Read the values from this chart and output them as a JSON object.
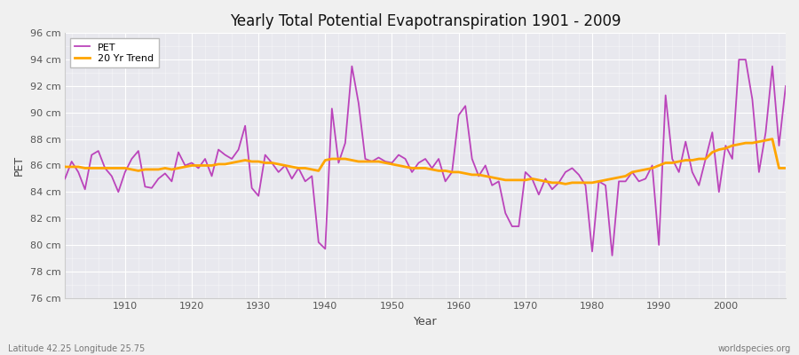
{
  "title": "Yearly Total Potential Evapotranspiration 1901 - 2009",
  "xlabel": "Year",
  "ylabel": "PET",
  "subtitle_left": "Latitude 42.25 Longitude 25.75",
  "subtitle_right": "worldspecies.org",
  "pet_color": "#bb44bb",
  "trend_color": "#ffa500",
  "fig_bg_color": "#f0f0f0",
  "plot_bg_color": "#e8e8ee",
  "ylim": [
    76,
    96
  ],
  "ytick_labels": [
    "76 cm",
    "78 cm",
    "80 cm",
    "82 cm",
    "84 cm",
    "86 cm",
    "88 cm",
    "90 cm",
    "92 cm",
    "94 cm",
    "96 cm"
  ],
  "ytick_values": [
    76,
    78,
    80,
    82,
    84,
    86,
    88,
    90,
    92,
    94,
    96
  ],
  "years": [
    1901,
    1902,
    1903,
    1904,
    1905,
    1906,
    1907,
    1908,
    1909,
    1910,
    1911,
    1912,
    1913,
    1914,
    1915,
    1916,
    1917,
    1918,
    1919,
    1920,
    1921,
    1922,
    1923,
    1924,
    1925,
    1926,
    1927,
    1928,
    1929,
    1930,
    1931,
    1932,
    1933,
    1934,
    1935,
    1936,
    1937,
    1938,
    1939,
    1940,
    1941,
    1942,
    1943,
    1944,
    1945,
    1946,
    1947,
    1948,
    1949,
    1950,
    1951,
    1952,
    1953,
    1954,
    1955,
    1956,
    1957,
    1958,
    1959,
    1960,
    1961,
    1962,
    1963,
    1964,
    1965,
    1966,
    1967,
    1968,
    1969,
    1970,
    1971,
    1972,
    1973,
    1974,
    1975,
    1976,
    1977,
    1978,
    1979,
    1980,
    1981,
    1982,
    1983,
    1984,
    1985,
    1986,
    1987,
    1988,
    1989,
    1990,
    1991,
    1992,
    1993,
    1994,
    1995,
    1996,
    1997,
    1998,
    1999,
    2000,
    2001,
    2002,
    2003,
    2004,
    2005,
    2006,
    2007,
    2008,
    2009
  ],
  "pet_values": [
    85.0,
    86.3,
    85.5,
    84.2,
    86.8,
    87.1,
    85.8,
    85.2,
    84.0,
    85.5,
    86.5,
    87.1,
    84.4,
    84.3,
    85.0,
    85.4,
    84.8,
    87.0,
    86.0,
    86.2,
    85.8,
    86.5,
    85.2,
    87.2,
    86.8,
    86.5,
    87.2,
    89.0,
    84.3,
    83.7,
    86.8,
    86.2,
    85.5,
    86.0,
    85.0,
    85.8,
    84.8,
    85.2,
    80.2,
    79.7,
    90.3,
    86.2,
    87.7,
    93.5,
    90.7,
    86.5,
    86.3,
    86.6,
    86.3,
    86.2,
    86.8,
    86.5,
    85.5,
    86.2,
    86.5,
    85.8,
    86.5,
    84.8,
    85.5,
    89.8,
    90.5,
    86.5,
    85.2,
    86.0,
    84.5,
    84.8,
    82.4,
    81.4,
    81.4,
    85.5,
    85.0,
    83.8,
    85.0,
    84.2,
    84.7,
    85.5,
    85.8,
    85.3,
    84.5,
    79.5,
    84.8,
    84.5,
    79.2,
    84.8,
    84.8,
    85.5,
    84.8,
    85.0,
    86.0,
    80.0,
    91.3,
    86.5,
    85.5,
    87.8,
    85.5,
    84.5,
    86.5,
    88.5,
    84.0,
    87.5,
    86.5,
    94.0,
    94.0,
    91.0,
    85.5,
    88.5,
    93.5,
    87.5,
    92.0
  ],
  "trend_years": [
    1901,
    1902,
    1903,
    1904,
    1905,
    1906,
    1907,
    1908,
    1909,
    1910,
    1911,
    1912,
    1913,
    1914,
    1915,
    1916,
    1917,
    1918,
    1919,
    1920,
    1921,
    1922,
    1923,
    1924,
    1925,
    1926,
    1927,
    1928,
    1929,
    1930,
    1931,
    1932,
    1933,
    1934,
    1935,
    1936,
    1937,
    1938,
    1939,
    1940,
    1941,
    1942,
    1943,
    1944,
    1945,
    1946,
    1947,
    1948,
    1949,
    1950,
    1951,
    1952,
    1953,
    1954,
    1955,
    1956,
    1957,
    1958,
    1959,
    1960,
    1961,
    1962,
    1963,
    1964,
    1965,
    1966,
    1967,
    1968,
    1969,
    1970,
    1971,
    1972,
    1973,
    1974,
    1975,
    1976,
    1977,
    1978,
    1979,
    1980,
    1981,
    1982,
    1983,
    1984,
    1985,
    1986,
    1987,
    1988,
    1989,
    1990,
    1991,
    1992,
    1993,
    1994,
    1995,
    1996,
    1997,
    1998,
    1999,
    2000,
    2001,
    2002,
    2003,
    2004,
    2005,
    2006,
    2007,
    2008,
    2009
  ],
  "trend_values": [
    85.9,
    85.9,
    85.9,
    85.8,
    85.8,
    85.8,
    85.8,
    85.8,
    85.8,
    85.8,
    85.7,
    85.6,
    85.7,
    85.7,
    85.7,
    85.8,
    85.7,
    85.8,
    85.9,
    86.0,
    86.0,
    86.0,
    86.0,
    86.1,
    86.1,
    86.2,
    86.3,
    86.4,
    86.3,
    86.3,
    86.2,
    86.2,
    86.1,
    86.0,
    85.9,
    85.8,
    85.8,
    85.7,
    85.6,
    86.4,
    86.5,
    86.5,
    86.5,
    86.4,
    86.3,
    86.3,
    86.3,
    86.3,
    86.2,
    86.1,
    86.0,
    85.9,
    85.8,
    85.8,
    85.8,
    85.7,
    85.6,
    85.6,
    85.5,
    85.5,
    85.4,
    85.3,
    85.3,
    85.2,
    85.1,
    85.0,
    84.9,
    84.9,
    84.9,
    84.9,
    85.0,
    84.9,
    84.8,
    84.7,
    84.7,
    84.6,
    84.7,
    84.7,
    84.7,
    84.7,
    84.8,
    84.9,
    85.0,
    85.1,
    85.2,
    85.5,
    85.6,
    85.7,
    85.8,
    86.0,
    86.2,
    86.2,
    86.3,
    86.4,
    86.4,
    86.5,
    86.5,
    87.0,
    87.2,
    87.3,
    87.5,
    87.6,
    87.7,
    87.7,
    87.8,
    87.9,
    88.0,
    85.8,
    85.8
  ]
}
